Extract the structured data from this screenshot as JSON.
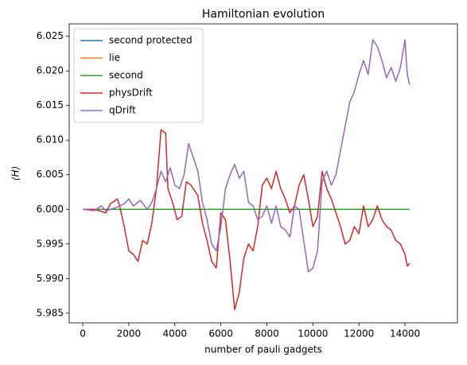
{
  "chart_data": {
    "type": "line",
    "title": "Hamiltonian evolution",
    "xlabel": "number of pauli gadgets",
    "ylabel": "⟨H⟩",
    "xlim": [
      -590,
      16280
    ],
    "ylim": [
      5.9836,
      6.0268
    ],
    "xticks": [
      0,
      2000,
      4000,
      6000,
      8000,
      10000,
      12000,
      14000
    ],
    "yticks": [
      5.985,
      {
        "value": 5.99,
        "label": "5.990"
      },
      5.995,
      {
        "value": 6,
        "label": "6.000"
      },
      6.005,
      {
        "value": 6.01,
        "label": "6.010"
      },
      6.015,
      {
        "value": 6.02,
        "label": "6.020"
      },
      6.025
    ],
    "legend": "upper left",
    "grid": false,
    "series": [
      {
        "name": "second protected",
        "color": "#1f77b4",
        "x": [
          0,
          14200
        ],
        "values": [
          6,
          6
        ]
      },
      {
        "name": "lie",
        "color": "#ff7f0e",
        "x": [
          0,
          14200
        ],
        "values": [
          6,
          6
        ]
      },
      {
        "name": "second",
        "color": "#2ca02c",
        "x": [
          0,
          14200
        ],
        "values": [
          6,
          6
        ]
      },
      {
        "name": "physDrift",
        "color": "#d62728",
        "x": [
          0,
          500,
          1000,
          1200,
          1500,
          1600,
          1800,
          2000,
          2200,
          2400,
          2600,
          2800,
          3000,
          3200,
          3400,
          3600,
          3700,
          3900,
          4100,
          4300,
          4500,
          4700,
          4900,
          5000,
          5200,
          5400,
          5600,
          5800,
          6000,
          6200,
          6400,
          6600,
          6800,
          7000,
          7200,
          7400,
          7600,
          7800,
          8000,
          8200,
          8400,
          8600,
          8800,
          9000,
          9200,
          9400,
          9600,
          9800,
          10000,
          10200,
          10400,
          10600,
          10800,
          11000,
          11200,
          11400,
          11600,
          11800,
          12000,
          12200,
          12400,
          12600,
          12800,
          13000,
          13200,
          13400,
          13600,
          13800,
          14000,
          14100,
          14200
        ],
        "values": [
          6.0,
          6.0,
          5.9995,
          6.0008,
          6.0015,
          6.0005,
          5.9975,
          5.994,
          5.9935,
          5.9925,
          5.9955,
          5.995,
          5.998,
          6.003,
          6.0115,
          6.011,
          6.003,
          6.001,
          5.9985,
          5.999,
          6.004,
          6.0035,
          6.0025,
          6.002,
          5.998,
          5.9955,
          5.9925,
          5.9915,
          5.9995,
          5.9985,
          5.9925,
          5.9855,
          5.988,
          5.993,
          5.995,
          5.994,
          5.9975,
          6.0035,
          6.0045,
          6.003,
          6.0055,
          6.003,
          6.0015,
          5.9995,
          6.0005,
          6.0035,
          6.005,
          6.0015,
          5.9975,
          5.999,
          6.0055,
          6.003,
          6.0015,
          5.9995,
          5.9975,
          5.995,
          5.9955,
          5.9975,
          5.9965,
          6.0005,
          5.9975,
          5.9985,
          6.0005,
          5.9985,
          5.9975,
          5.997,
          5.9955,
          5.995,
          5.9935,
          5.9918,
          5.9922
        ]
      },
      {
        "name": "qDrift",
        "color": "#9467bd",
        "x": [
          0,
          500,
          800,
          1000,
          1400,
          1800,
          2000,
          2200,
          2500,
          2800,
          3000,
          3200,
          3400,
          3600,
          3800,
          4000,
          4200,
          4400,
          4600,
          4800,
          5000,
          5200,
          5400,
          5600,
          5800,
          6000,
          6200,
          6400,
          6600,
          6800,
          7000,
          7200,
          7400,
          7600,
          7800,
          8000,
          8200,
          8400,
          8600,
          8800,
          9000,
          9200,
          9400,
          9600,
          9800,
          10000,
          10200,
          10400,
          10600,
          10800,
          11000,
          11200,
          11400,
          11600,
          11800,
          12000,
          12200,
          12400,
          12600,
          12800,
          13000,
          13200,
          13400,
          13600,
          13800,
          14000,
          14100,
          14200
        ],
        "values": [
          6.0,
          5.9998,
          6.0005,
          5.9998,
          6.0002,
          6.0008,
          6.0015,
          6.0005,
          6.0013,
          6.0,
          6.001,
          6.003,
          6.0055,
          6.004,
          6.006,
          6.0035,
          6.003,
          6.005,
          6.0095,
          6.0075,
          6.0055,
          6.001,
          5.9985,
          5.995,
          5.994,
          5.9975,
          6.003,
          6.005,
          6.0065,
          6.0045,
          6.0055,
          6.001,
          6.0005,
          5.9985,
          5.999,
          6.0005,
          5.998,
          6.0005,
          5.9975,
          5.997,
          5.996,
          6.0005,
          6.0,
          5.9955,
          5.991,
          5.9915,
          5.994,
          6.004,
          6.0055,
          6.0035,
          6.005,
          6.0085,
          6.012,
          6.0155,
          6.017,
          6.0195,
          6.0215,
          6.0195,
          6.0245,
          6.0235,
          6.0215,
          6.019,
          6.0205,
          6.0185,
          6.0205,
          6.0245,
          6.0195,
          6.018
        ]
      }
    ]
  }
}
